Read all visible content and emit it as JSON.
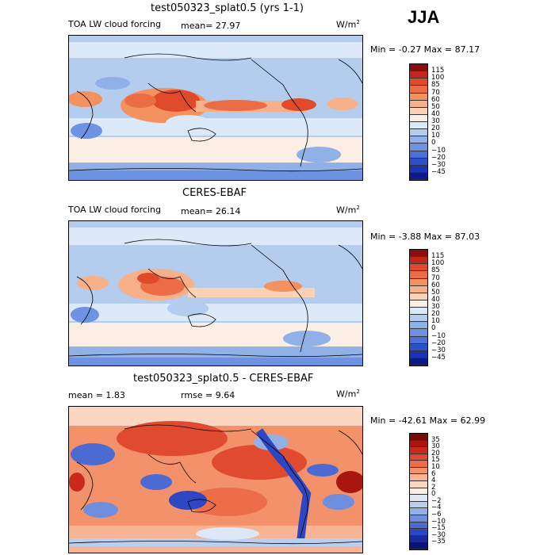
{
  "season": "JJA",
  "panels": [
    {
      "title": "test050323_splat0.5 (yrs 1-1)",
      "variable": "TOA LW cloud forcing",
      "stat1": "mean=  27.97",
      "stat2": "",
      "units": "W/m",
      "units_exp": "2",
      "minmax": "Min =  -0.27 Max =  87.17",
      "colorbar_labels": [
        "115",
        "100",
        "85",
        "70",
        "60",
        "50",
        "40",
        "30",
        "20",
        "10",
        "0",
        "−10",
        "−20",
        "−30",
        "−45"
      ],
      "colorbar_colors": [
        "#8b0d0d",
        "#c1271c",
        "#df4a2b",
        "#ec6d45",
        "#f3915f",
        "#f6b08a",
        "#fbd2b5",
        "#fbeee4",
        "#dbe9f8",
        "#b4cdef",
        "#8fb1e8",
        "#6d93e2",
        "#4b71d8",
        "#2c4fcc",
        "#1a34b5",
        "#0c1a8a"
      ]
    },
    {
      "title": "CERES-EBAF",
      "variable": "TOA LW cloud forcing",
      "stat1": "mean=  26.14",
      "stat2": "",
      "units": "W/m",
      "units_exp": "2",
      "minmax": "Min =  -3.88 Max =  87.03",
      "colorbar_labels": [
        "115",
        "100",
        "85",
        "70",
        "60",
        "50",
        "40",
        "30",
        "20",
        "10",
        "0",
        "−10",
        "−20",
        "−30",
        "−45"
      ],
      "colorbar_colors": [
        "#8b0d0d",
        "#c1271c",
        "#df4a2b",
        "#ec6d45",
        "#f3915f",
        "#f6b08a",
        "#fbd2b5",
        "#fbeee4",
        "#dbe9f8",
        "#b4cdef",
        "#8fb1e8",
        "#6d93e2",
        "#4b71d8",
        "#2c4fcc",
        "#1a34b5",
        "#0c1a8a"
      ]
    },
    {
      "title": "test050323_splat0.5 - CERES-EBAF",
      "variable": "",
      "stat1": "mean =   1.83",
      "stat2": "rmse =   9.64",
      "units": "W/m",
      "units_exp": "2",
      "minmax": "Min = -42.61 Max =  62.99",
      "colorbar_labels": [
        "35",
        "30",
        "20",
        "15",
        "10",
        "6",
        "4",
        "2",
        "0",
        "−2",
        "−4",
        "−6",
        "−10",
        "−15",
        "−30",
        "−35"
      ],
      "colorbar_colors": [
        "#7a0a0a",
        "#a8160f",
        "#c92a1b",
        "#e04a2e",
        "#ec6d48",
        "#f3926a",
        "#f7b595",
        "#fbd6c2",
        "#fbeee7",
        "#dde8f6",
        "#b9cdee",
        "#93b0e6",
        "#6e8fde",
        "#4b6bd3",
        "#2d47c2",
        "#172aa0",
        "#0b137a"
      ]
    }
  ]
}
